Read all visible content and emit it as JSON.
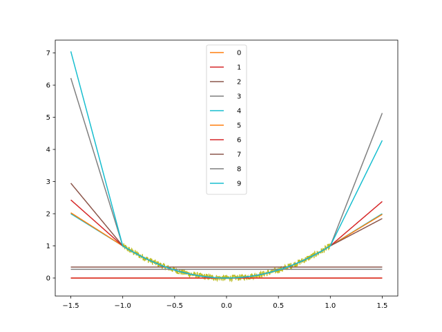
{
  "chart_data": {
    "type": "line",
    "title": "",
    "xlabel": "",
    "ylabel": "",
    "xlim": [
      -1.65,
      1.65
    ],
    "ylim": [
      -0.56,
      7.4
    ],
    "x_ticks": [
      -1.5,
      -1.0,
      -0.5,
      0.0,
      0.5,
      1.0,
      1.5
    ],
    "x_tick_labels": [
      "−1.5",
      "−1.0",
      "−0.5",
      "0.0",
      "0.5",
      "1.0",
      "1.5"
    ],
    "y_ticks": [
      0,
      1,
      2,
      3,
      4,
      5,
      6,
      7
    ],
    "y_tick_labels": [
      "0",
      "1",
      "2",
      "3",
      "4",
      "5",
      "6",
      "7"
    ],
    "grid": false,
    "legend_position": "top-center",
    "noisy_data": {
      "color": "#bcbd22",
      "x_range": [
        -1.0,
        1.0
      ],
      "function": "x^2",
      "noise_amplitude": 0.1
    },
    "series": [
      {
        "name": "0",
        "color": "#ff7f0e",
        "x": [
          -1.5,
          1.5
        ],
        "y": [
          0.0,
          0.0
        ]
      },
      {
        "name": "1",
        "color": "#d62728",
        "x": [
          -1.5,
          1.5
        ],
        "y": [
          0.0,
          0.0
        ]
      },
      {
        "name": "2",
        "color": "#8c564b",
        "x": [
          -1.5,
          1.5
        ],
        "y": [
          0.34,
          0.34
        ]
      },
      {
        "name": "3",
        "color": "#7f7f7f",
        "x": [
          -1.5,
          1.5
        ],
        "y": [
          0.27,
          0.27
        ]
      },
      {
        "name": "4",
        "color": "#17becf",
        "x": [
          -1.5,
          -1.0,
          -0.5,
          0.0,
          0.5,
          1.0,
          1.5
        ],
        "y": [
          2.0,
          1.0,
          0.25,
          0.0,
          0.25,
          1.0,
          2.0
        ]
      },
      {
        "name": "5",
        "color": "#ff7f0e",
        "x": [
          -1.5,
          -1.0,
          -0.5,
          0.0,
          0.5,
          1.0,
          1.5
        ],
        "y": [
          2.03,
          1.0,
          0.25,
          0.0,
          0.25,
          1.0,
          1.98
        ]
      },
      {
        "name": "6",
        "color": "#d62728",
        "x": [
          -1.5,
          -1.0,
          -0.5,
          0.0,
          0.5,
          1.0,
          1.5
        ],
        "y": [
          2.43,
          1.0,
          0.25,
          0.0,
          0.25,
          1.0,
          2.38
        ]
      },
      {
        "name": "7",
        "color": "#8c564b",
        "x": [
          -1.5,
          -1.0,
          -0.5,
          0.0,
          0.5,
          1.0,
          1.5
        ],
        "y": [
          2.95,
          1.0,
          0.25,
          0.0,
          0.25,
          1.0,
          1.85
        ]
      },
      {
        "name": "8",
        "color": "#7f7f7f",
        "x": [
          -1.5,
          -1.0,
          -0.5,
          0.0,
          0.5,
          1.0,
          1.5
        ],
        "y": [
          6.22,
          1.0,
          0.25,
          0.0,
          0.25,
          1.0,
          5.13
        ]
      },
      {
        "name": "9",
        "color": "#17becf",
        "x": [
          -1.5,
          -1.0,
          -0.5,
          0.0,
          0.5,
          1.0,
          1.5
        ],
        "y": [
          7.05,
          1.0,
          0.25,
          0.0,
          0.25,
          1.0,
          4.28
        ]
      }
    ]
  }
}
